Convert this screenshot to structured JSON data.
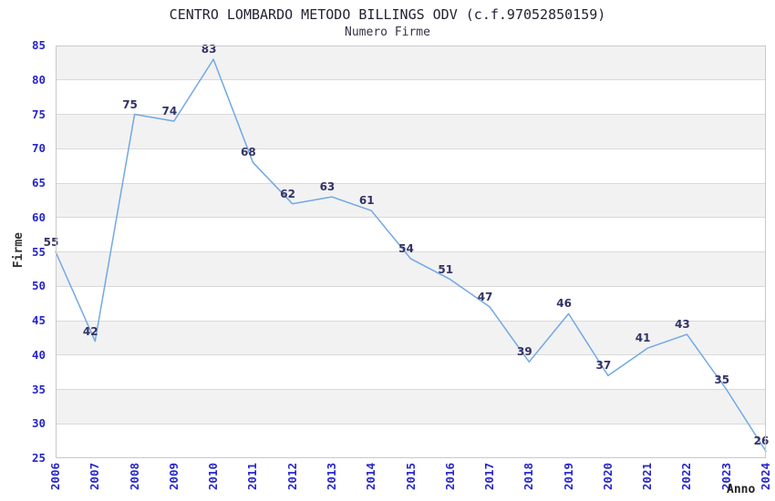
{
  "chart_data": {
    "type": "line",
    "title": "CENTRO LOMBARDO METODO BILLINGS ODV (c.f.97052850159)",
    "subtitle": "Numero Firme",
    "xlabel": "Anno",
    "ylabel": "Firme",
    "categories": [
      "2006",
      "2007",
      "2008",
      "2009",
      "2010",
      "2011",
      "2012",
      "2013",
      "2014",
      "2015",
      "2016",
      "2017",
      "2018",
      "2019",
      "2020",
      "2021",
      "2022",
      "2023",
      "2024"
    ],
    "values": [
      55,
      42,
      75,
      74,
      83,
      68,
      62,
      63,
      61,
      54,
      51,
      47,
      39,
      46,
      37,
      41,
      43,
      35,
      26
    ],
    "ylim": [
      25,
      85
    ],
    "ytick_step": 5,
    "grid": "horizontal-bands",
    "legend": "none",
    "colors": {
      "line": "#72a8e4",
      "value_label": "#333366",
      "tick_label": "#2525cc",
      "band_gray": "#f2f2f2",
      "band_white": "#ffffff",
      "gridline": "#d9d9d9",
      "plot_border": "#c9c9c9",
      "title": "#222233",
      "subtitle": "#333344",
      "axis_title": "#333333"
    }
  }
}
